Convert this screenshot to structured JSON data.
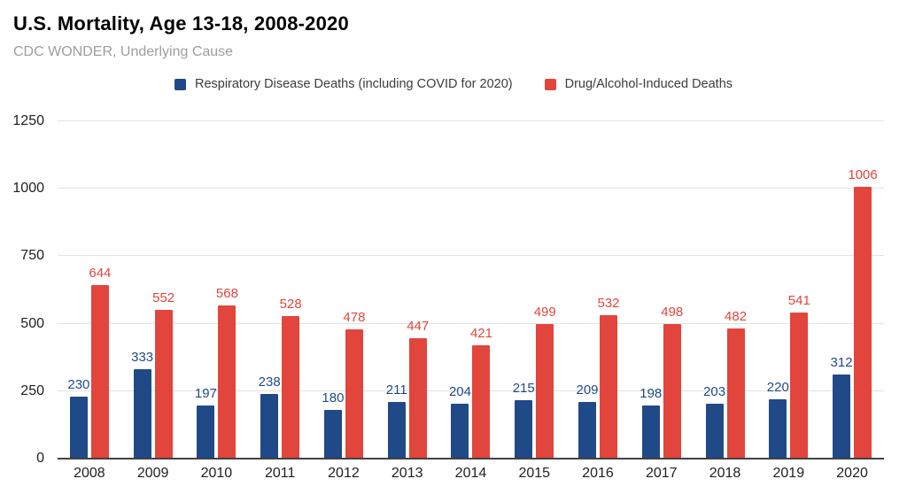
{
  "header": {
    "title": "U.S. Mortality, Age 13-18, 2008-2020",
    "subtitle": "CDC WONDER, Underlying Cause"
  },
  "chart_data": {
    "type": "bar",
    "title": "U.S. Mortality, Age 13-18, 2008-2020",
    "subtitle": "CDC WONDER, Underlying Cause",
    "categories": [
      "2008",
      "2009",
      "2010",
      "2011",
      "2012",
      "2013",
      "2014",
      "2015",
      "2016",
      "2017",
      "2018",
      "2019",
      "2020"
    ],
    "series": [
      {
        "key": "respiratory",
        "name": "Respiratory Disease Deaths (including COVID for 2020)",
        "color": "#1f4a87",
        "values": [
          230,
          333,
          197,
          238,
          180,
          211,
          204,
          215,
          209,
          198,
          203,
          220,
          312
        ]
      },
      {
        "key": "drug-alcohol",
        "name": "Drug/Alcohol-Induced Deaths",
        "color": "#e2453c",
        "values": [
          644,
          552,
          568,
          528,
          478,
          447,
          421,
          499,
          532,
          498,
          482,
          541,
          1006
        ]
      }
    ],
    "xlabel": "",
    "ylabel": "",
    "ylim": [
      0,
      1250
    ],
    "yticks": [
      0,
      250,
      500,
      750,
      1000,
      1250
    ],
    "grid": true,
    "legend_position": "top",
    "data_labels": true
  },
  "colors": {
    "grid": "#e3e3e3",
    "axis_line": "#424242",
    "axis_text": "#202124",
    "subtitle_text": "#9e9e9e",
    "legend_text": "#3c3c3c",
    "background": "#ffffff"
  }
}
